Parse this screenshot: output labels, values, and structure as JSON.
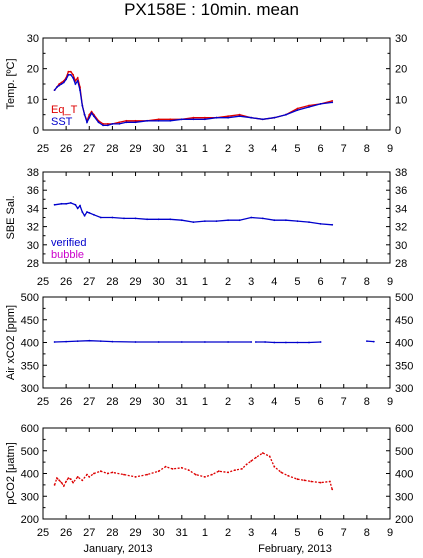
{
  "title": "PX158E : 10min. mean",
  "x_tick_labels": [
    "25",
    "26",
    "27",
    "28",
    "29",
    "30",
    "31",
    "1",
    "2",
    "3",
    "4",
    "5",
    "6",
    "7",
    "8",
    "9"
  ],
  "month_labels": [
    "January, 2013",
    "February, 2013"
  ],
  "colors": {
    "red": "#dd0000",
    "blue": "#0000cc",
    "magenta": "#cc00cc",
    "axis": "#000000"
  },
  "chart_data": [
    {
      "type": "line",
      "ylabel": "Temp. [ºC]",
      "ylim": [
        0,
        30
      ],
      "yticks": [
        0,
        10,
        20,
        30
      ],
      "xlim": [
        25,
        40
      ],
      "legend": [
        "Eq_T",
        "SST"
      ],
      "legend_placement": "bottom-left",
      "series": [
        {
          "name": "Eq_T",
          "color": "#dd0000",
          "x": [
            25.5,
            25.6,
            25.7,
            25.8,
            25.9,
            26.0,
            26.1,
            26.2,
            26.3,
            26.4,
            26.5,
            26.6,
            26.7,
            26.8,
            26.9,
            27.0,
            27.1,
            27.2,
            27.4,
            27.6,
            27.8,
            28.0,
            28.3,
            28.6,
            29.0,
            29.5,
            30.0,
            30.5,
            31.0,
            31.5,
            32.0,
            32.5,
            33.0,
            33.5,
            34.0,
            34.5,
            35.0,
            35.5,
            36.0,
            36.5,
            37.0,
            37.5
          ],
          "y": [
            13,
            14,
            15,
            15.5,
            16,
            17,
            19,
            19,
            18,
            16,
            17,
            14,
            8,
            5,
            3,
            5,
            6,
            5,
            3,
            2,
            2,
            2,
            2.5,
            3,
            3,
            3,
            3.5,
            3.5,
            3.5,
            4,
            4,
            4,
            4.5,
            5,
            4,
            3.5,
            4,
            5,
            7,
            8,
            8.5,
            9.5
          ]
        },
        {
          "name": "SST",
          "color": "#0000cc",
          "x": [
            25.5,
            25.6,
            25.7,
            25.8,
            25.9,
            26.0,
            26.1,
            26.2,
            26.3,
            26.4,
            26.5,
            26.6,
            26.7,
            26.8,
            26.9,
            27.0,
            27.1,
            27.2,
            27.4,
            27.6,
            27.8,
            28.0,
            28.3,
            28.6,
            29.0,
            29.5,
            30.0,
            30.5,
            31.0,
            31.5,
            32.0,
            32.5,
            33.0,
            33.5,
            34.0,
            34.5,
            35.0,
            35.5,
            36.0,
            36.5,
            37.0,
            37.5
          ],
          "y": [
            13,
            14,
            14.5,
            15,
            15.5,
            16.5,
            18,
            18,
            17,
            15,
            16,
            13,
            8,
            5,
            2.5,
            4,
            5.5,
            4.5,
            2.5,
            1.5,
            1.5,
            2,
            2,
            2.5,
            2.5,
            3,
            3,
            3,
            3.5,
            3.5,
            3.5,
            4,
            4,
            4.5,
            4,
            3.5,
            4,
            5,
            6.5,
            7.5,
            8.5,
            9
          ]
        }
      ]
    },
    {
      "type": "line",
      "ylabel": "SBE Sal.",
      "ylim": [
        28,
        38
      ],
      "yticks": [
        28,
        30,
        32,
        34,
        36,
        38
      ],
      "xlim": [
        25,
        40
      ],
      "legend": [
        "verified",
        "bubble"
      ],
      "legend_placement": "bottom-left",
      "series": [
        {
          "name": "verified",
          "color": "#0000cc",
          "x": [
            25.5,
            25.8,
            26.0,
            26.2,
            26.4,
            26.5,
            26.6,
            26.7,
            26.8,
            26.9,
            27.0,
            27.2,
            27.5,
            28.0,
            28.5,
            29.0,
            29.5,
            30.0,
            30.5,
            31.0,
            31.5,
            32.0,
            32.5,
            33.0,
            33.5,
            34.0,
            34.5,
            35.0,
            35.5,
            36.0,
            36.5,
            37.0,
            37.5
          ],
          "y": [
            34.4,
            34.5,
            34.5,
            34.6,
            34.4,
            34.0,
            34.3,
            33.6,
            33.2,
            33.6,
            33.5,
            33.3,
            33.0,
            33.0,
            32.9,
            32.9,
            32.8,
            32.8,
            32.8,
            32.7,
            32.5,
            32.6,
            32.6,
            32.7,
            32.7,
            33.0,
            32.9,
            32.7,
            32.7,
            32.6,
            32.5,
            32.3,
            32.2
          ]
        }
      ]
    },
    {
      "type": "line",
      "ylabel": "Air xCO2 [ppm]",
      "ylim": [
        300,
        500
      ],
      "yticks": [
        300,
        350,
        400,
        450,
        500
      ],
      "xlim": [
        25,
        40
      ],
      "series": [
        {
          "name": "Air xCO2",
          "color": "#0000cc",
          "segments": [
            {
              "x": [
                25.5,
                26.0,
                26.5,
                27.0,
                27.5,
                28.0,
                29.0,
                30.0,
                31.0,
                32.0,
                33.0,
                34.0
              ],
              "y": [
                401,
                402,
                403,
                404,
                403,
                402,
                401,
                401,
                401,
                401,
                401,
                401
              ]
            },
            {
              "x": [
                34.2,
                34.6,
                35.0,
                35.5,
                36.0,
                36.5,
                37.0
              ],
              "y": [
                401,
                401,
                400,
                400,
                400,
                400,
                401
              ]
            },
            {
              "x": [
                39.0,
                39.3
              ],
              "y": [
                403,
                402
              ]
            }
          ]
        }
      ]
    },
    {
      "type": "line",
      "ylabel": "pCO2 [μatm]",
      "ylim": [
        200,
        600
      ],
      "yticks": [
        200,
        300,
        400,
        500,
        600
      ],
      "xlim": [
        25,
        40
      ],
      "xlabel": "",
      "series": [
        {
          "name": "pCO2",
          "color": "#dd0000",
          "x": [
            25.5,
            25.6,
            25.7,
            25.8,
            25.9,
            26.0,
            26.1,
            26.2,
            26.3,
            26.5,
            26.7,
            26.9,
            27.0,
            27.2,
            27.5,
            27.8,
            28.0,
            28.5,
            29.0,
            29.5,
            30.0,
            30.3,
            30.6,
            31.0,
            31.3,
            31.6,
            32.0,
            32.3,
            32.6,
            33.0,
            33.3,
            33.6,
            33.8,
            34.0,
            34.2,
            34.5,
            34.8,
            35.0,
            35.3,
            35.6,
            36.0,
            36.3,
            36.6,
            37.0,
            37.4,
            37.5
          ],
          "y": [
            350,
            380,
            370,
            360,
            345,
            365,
            380,
            375,
            360,
            385,
            370,
            395,
            385,
            400,
            410,
            400,
            405,
            395,
            385,
            395,
            410,
            430,
            420,
            425,
            415,
            395,
            385,
            395,
            410,
            405,
            415,
            420,
            440,
            455,
            470,
            490,
            475,
            430,
            405,
            390,
            375,
            370,
            365,
            360,
            365,
            330
          ]
        }
      ]
    }
  ]
}
